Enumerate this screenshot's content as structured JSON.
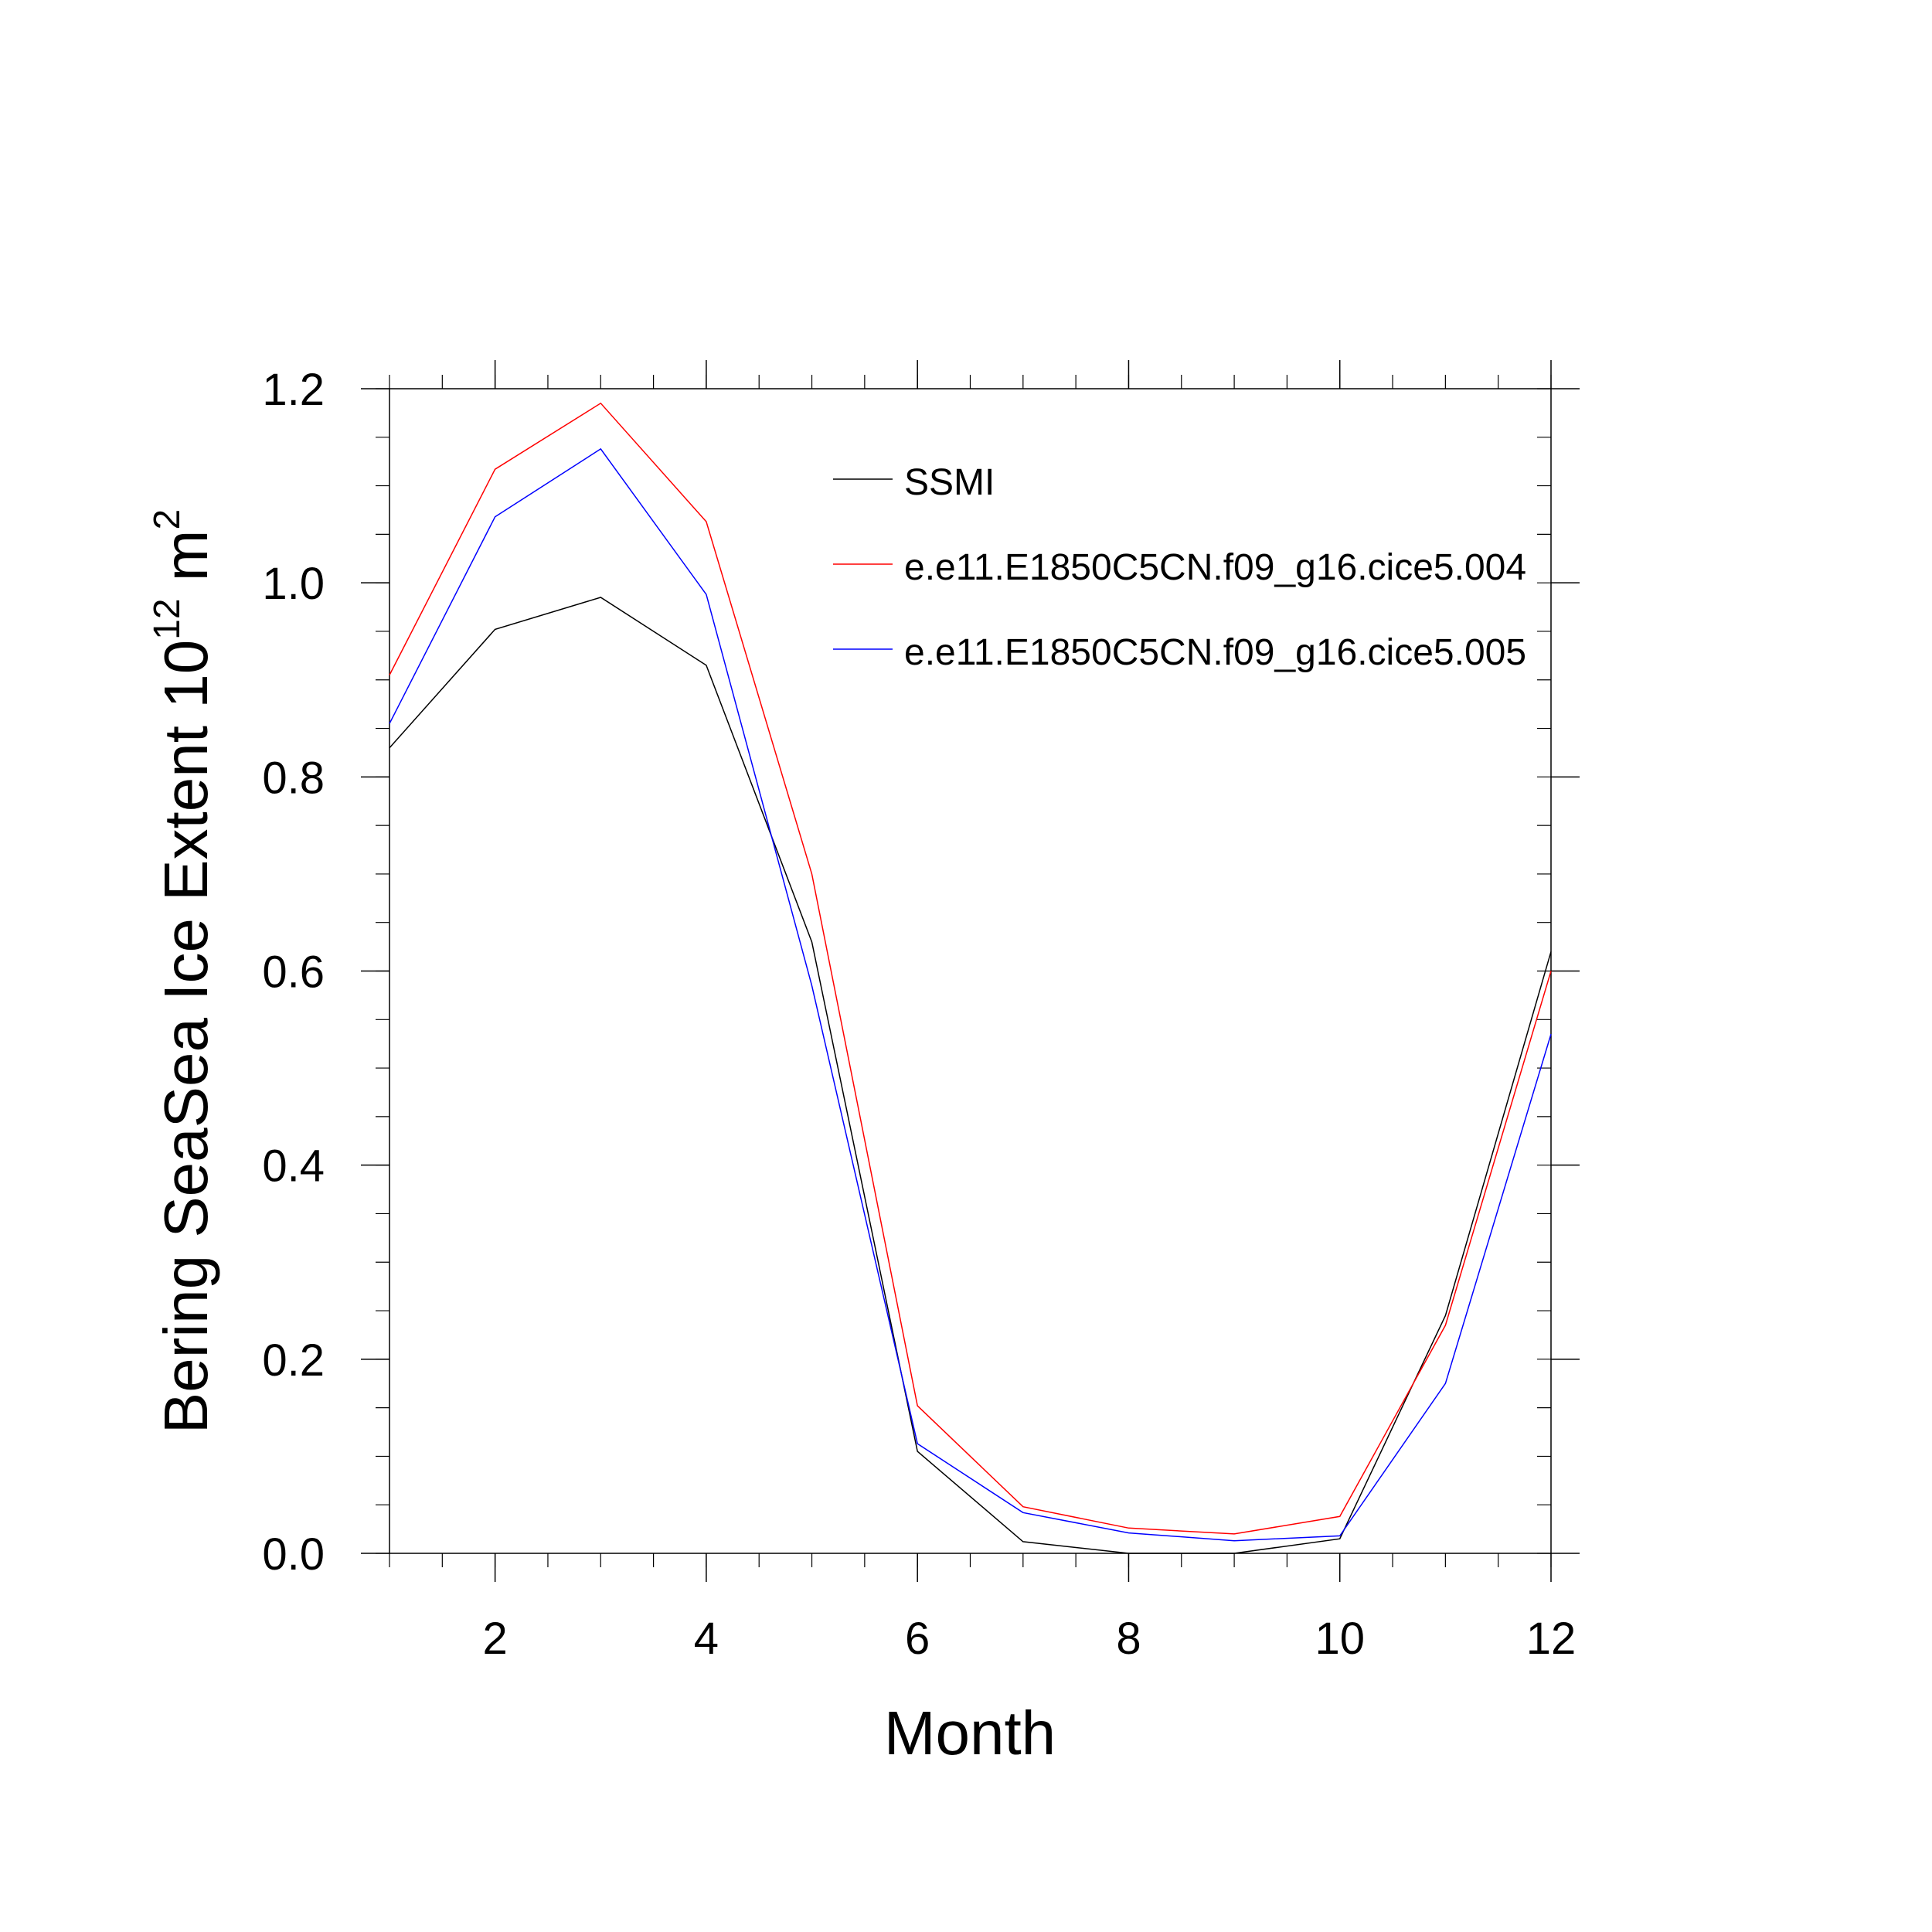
{
  "chart_data": {
    "type": "line",
    "title": "",
    "xlabel": "Month",
    "ylabel_prefix": "Bering SeaSea Ice Extent 10",
    "ylabel_exp1": "12",
    "ylabel_unit": " m",
    "ylabel_exp2": "2",
    "xlim": [
      1,
      12
    ],
    "ylim": [
      0,
      1.2
    ],
    "x_ticks": [
      2,
      4,
      6,
      8,
      10,
      12
    ],
    "y_ticks": [
      0.0,
      0.2,
      0.4,
      0.6,
      0.8,
      1.0,
      1.2
    ],
    "y_tick_labels": [
      "0.0",
      "0.2",
      "0.4",
      "0.6",
      "0.8",
      "1.0",
      "1.2"
    ],
    "x": [
      1,
      2,
      3,
      4,
      5,
      6,
      7,
      8,
      9,
      10,
      11,
      12
    ],
    "legend_position": "top-right",
    "series": [
      {
        "name": "SSMI",
        "color": "#000000",
        "values": [
          0.83,
          0.952,
          0.985,
          0.915,
          0.63,
          0.105,
          0.012,
          0.0,
          0.0,
          0.015,
          0.245,
          0.62
        ]
      },
      {
        "name": "e.e11.E1850C5CN.f09_g16.cice5.004",
        "color": "#ff0000",
        "values": [
          0.905,
          1.117,
          1.185,
          1.063,
          0.7,
          0.152,
          0.048,
          0.026,
          0.02,
          0.038,
          0.235,
          0.6
        ]
      },
      {
        "name": "e.e11.E1850C5CN.f09_g16.cice5.005",
        "color": "#0000ff",
        "values": [
          0.855,
          1.068,
          1.138,
          0.988,
          0.585,
          0.113,
          0.042,
          0.021,
          0.013,
          0.018,
          0.175,
          0.535
        ]
      }
    ]
  }
}
